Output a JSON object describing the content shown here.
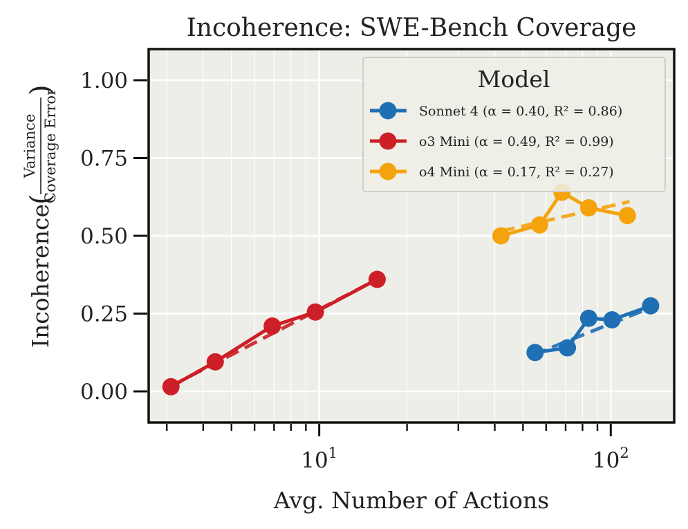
{
  "chart_data": {
    "type": "line",
    "title": "Incoherence: SWE-Bench Coverage",
    "xlabel": "Avg. Number of Actions",
    "ylabel_main": "Incoherence",
    "ylabel_frac_num": "Variance",
    "ylabel_frac_den": "Coverage Error",
    "xscale": "log",
    "xlim": [
      2.6,
      165
    ],
    "ylim": [
      -0.1,
      1.1
    ],
    "yticks": [
      {
        "value": 0.0,
        "label": "0.00"
      },
      {
        "value": 0.25,
        "label": "0.25"
      },
      {
        "value": 0.5,
        "label": "0.50"
      },
      {
        "value": 0.75,
        "label": "0.75"
      },
      {
        "value": 1.0,
        "label": "1.00"
      }
    ],
    "xticks_major": [
      {
        "value": 10,
        "base": "10",
        "exp": "1"
      },
      {
        "value": 100,
        "base": "10",
        "exp": "2"
      }
    ],
    "xticks_minor": [
      3,
      4,
      5,
      6,
      7,
      8,
      9,
      20,
      30,
      40,
      50,
      60,
      70,
      80,
      90
    ],
    "grid": true,
    "legend": {
      "title": "Model",
      "position": "top-right"
    },
    "series": [
      {
        "name": "Sonnet 4",
        "legend_label": "Sonnet 4 (α = 0.40, R² = 0.86)",
        "color": "#1f6fb4",
        "x": [
          55,
          71,
          84,
          101,
          137
        ],
        "y": [
          0.125,
          0.14,
          0.235,
          0.23,
          0.275
        ],
        "fit": [
          [
            54,
            0.117
          ],
          [
            138,
            0.27
          ]
        ]
      },
      {
        "name": "o3 Mini",
        "legend_label": "o3 Mini (α = 0.49, R² = 0.99)",
        "color": "#cc1f27",
        "x": [
          3.1,
          4.4,
          6.9,
          9.7,
          15.8
        ],
        "y": [
          0.015,
          0.095,
          0.21,
          0.255,
          0.36
        ],
        "fit": [
          [
            3.1,
            0.017
          ],
          [
            15.8,
            0.36
          ]
        ]
      },
      {
        "name": "o4 Mini",
        "legend_label": "o4 Mini (α = 0.17, R² = 0.27)",
        "color": "#f5a30d",
        "x": [
          42,
          57,
          68,
          84,
          114
        ],
        "y": [
          0.5,
          0.535,
          0.64,
          0.59,
          0.565
        ],
        "fit": [
          [
            42,
            0.515
          ],
          [
            116,
            0.61
          ]
        ]
      }
    ]
  }
}
